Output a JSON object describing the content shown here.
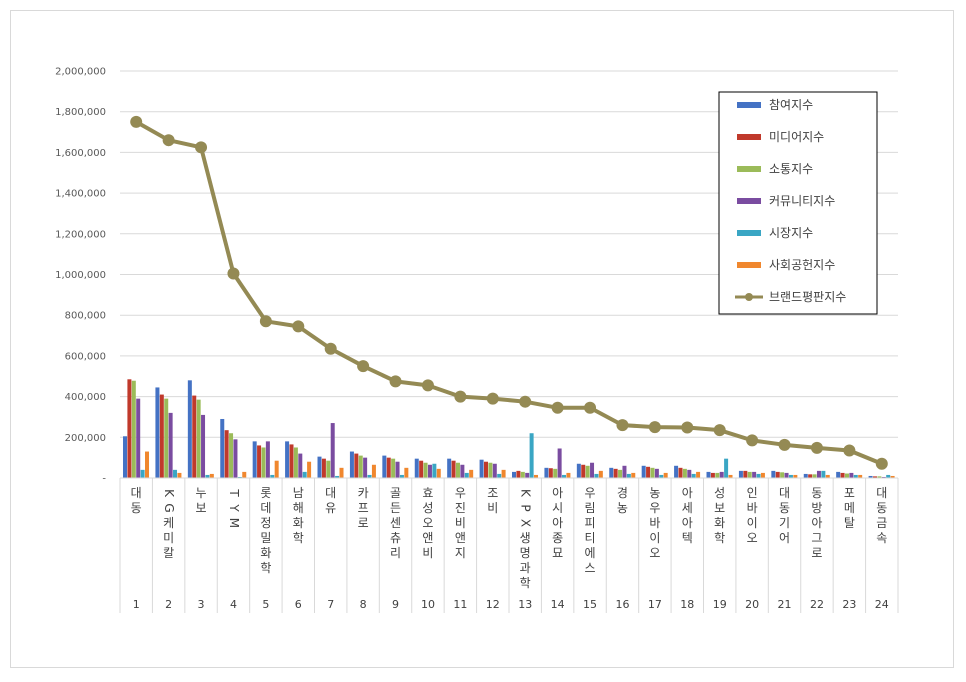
{
  "chart_data": {
    "type": "bar",
    "subtype": "clustered-bar-with-line",
    "title": "",
    "xlabel": "",
    "ylabel": "",
    "ylim": [
      0,
      2000000
    ],
    "yticks": [
      "-",
      "200,000",
      "400,000",
      "600,000",
      "800,000",
      "1,000,000",
      "1,200,000",
      "1,400,000",
      "1,600,000",
      "1,800,000",
      "2,000,000"
    ],
    "grid": "horizontal",
    "legend_position": "top-right",
    "categories": [
      "대동",
      "KG케미칼",
      "누보",
      "TYM",
      "롯데정밀화학",
      "남해화학",
      "대유",
      "카프로",
      "골든센츄리",
      "효성오앤비",
      "우진비앤지",
      "조비",
      "KPX생명과학",
      "아시아종묘",
      "우림피티에스",
      "경농",
      "농우바이오",
      "아세아텍",
      "성보화학",
      "인바이오",
      "대동기어",
      "동방아그로",
      "포메탈",
      "대동금속"
    ],
    "ranks": [
      "1",
      "2",
      "3",
      "4",
      "5",
      "6",
      "7",
      "8",
      "9",
      "10",
      "11",
      "12",
      "13",
      "14",
      "15",
      "16",
      "17",
      "18",
      "19",
      "20",
      "21",
      "22",
      "23",
      "24"
    ],
    "series": [
      {
        "name": "참여지수",
        "type": "bar",
        "color": "#4472c4",
        "values": [
          205000,
          445000,
          480000,
          290000,
          180000,
          180000,
          105000,
          130000,
          110000,
          95000,
          95000,
          90000,
          30000,
          50000,
          70000,
          50000,
          60000,
          60000,
          30000,
          35000,
          35000,
          20000,
          30000,
          10000
        ]
      },
      {
        "name": "미디어지수",
        "type": "bar",
        "color": "#c0392b",
        "values": [
          485000,
          410000,
          405000,
          235000,
          160000,
          165000,
          95000,
          120000,
          100000,
          85000,
          85000,
          80000,
          35000,
          48000,
          65000,
          45000,
          55000,
          50000,
          25000,
          35000,
          30000,
          18000,
          25000,
          8000
        ]
      },
      {
        "name": "소통지수",
        "type": "bar",
        "color": "#9bbb59",
        "values": [
          478000,
          390000,
          385000,
          220000,
          150000,
          150000,
          85000,
          110000,
          95000,
          75000,
          75000,
          75000,
          30000,
          45000,
          60000,
          40000,
          50000,
          45000,
          25000,
          30000,
          28000,
          18000,
          22000,
          8000
        ]
      },
      {
        "name": "커뮤니티지수",
        "type": "bar",
        "color": "#7a4ca0",
        "values": [
          390000,
          320000,
          310000,
          190000,
          180000,
          120000,
          270000,
          100000,
          80000,
          65000,
          65000,
          70000,
          25000,
          145000,
          75000,
          60000,
          45000,
          40000,
          30000,
          30000,
          25000,
          35000,
          25000,
          5000
        ]
      },
      {
        "name": "시장지수",
        "type": "bar",
        "color": "#3aa6c4",
        "values": [
          40000,
          40000,
          15000,
          5000,
          15000,
          30000,
          10000,
          15000,
          15000,
          70000,
          25000,
          20000,
          220000,
          15000,
          20000,
          20000,
          15000,
          20000,
          95000,
          20000,
          15000,
          35000,
          15000,
          15000
        ]
      },
      {
        "name": "사회공헌지수",
        "type": "bar",
        "color": "#f0872e",
        "values": [
          130000,
          25000,
          20000,
          30000,
          85000,
          80000,
          50000,
          65000,
          50000,
          45000,
          40000,
          40000,
          15000,
          25000,
          35000,
          25000,
          25000,
          30000,
          15000,
          25000,
          15000,
          15000,
          15000,
          10000
        ]
      },
      {
        "name": "브랜드평판지수",
        "type": "line",
        "color": "#948a54",
        "values": [
          1750000,
          1660000,
          1625000,
          1005000,
          770000,
          745000,
          635000,
          550000,
          475000,
          455000,
          400000,
          390000,
          375000,
          345000,
          345000,
          260000,
          250000,
          248000,
          235000,
          185000,
          163000,
          148000,
          135000,
          70000
        ]
      }
    ]
  }
}
